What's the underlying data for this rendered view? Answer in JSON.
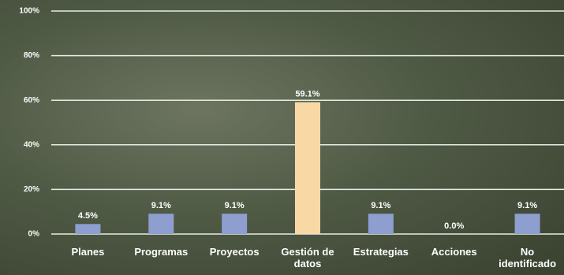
{
  "chart_data": {
    "type": "bar",
    "categories": [
      "Planes",
      "Programas",
      "Proyectos",
      "Gestión de datos",
      "Estrategias",
      "Acciones",
      "No identificado"
    ],
    "values": [
      4.5,
      9.1,
      9.1,
      59.1,
      9.1,
      0.0,
      9.1
    ],
    "value_labels": [
      "4.5%",
      "9.1%",
      "9.1%",
      "59.1%",
      "9.1%",
      "0.0%",
      "9.1%"
    ],
    "colors": [
      "#8e9fcf",
      "#8e9fcf",
      "#8e9fcf",
      "#f8d9a6",
      "#8e9fcf",
      "#8e9fcf",
      "#8e9fcf"
    ],
    "ylim": [
      0,
      100
    ],
    "yticks": [
      {
        "value": 0,
        "label": "0%"
      },
      {
        "value": 20,
        "label": "20%"
      },
      {
        "value": 40,
        "label": "40%"
      },
      {
        "value": 60,
        "label": "60%"
      },
      {
        "value": 80,
        "label": "80%"
      },
      {
        "value": 100,
        "label": "100%"
      }
    ],
    "grid": true
  }
}
